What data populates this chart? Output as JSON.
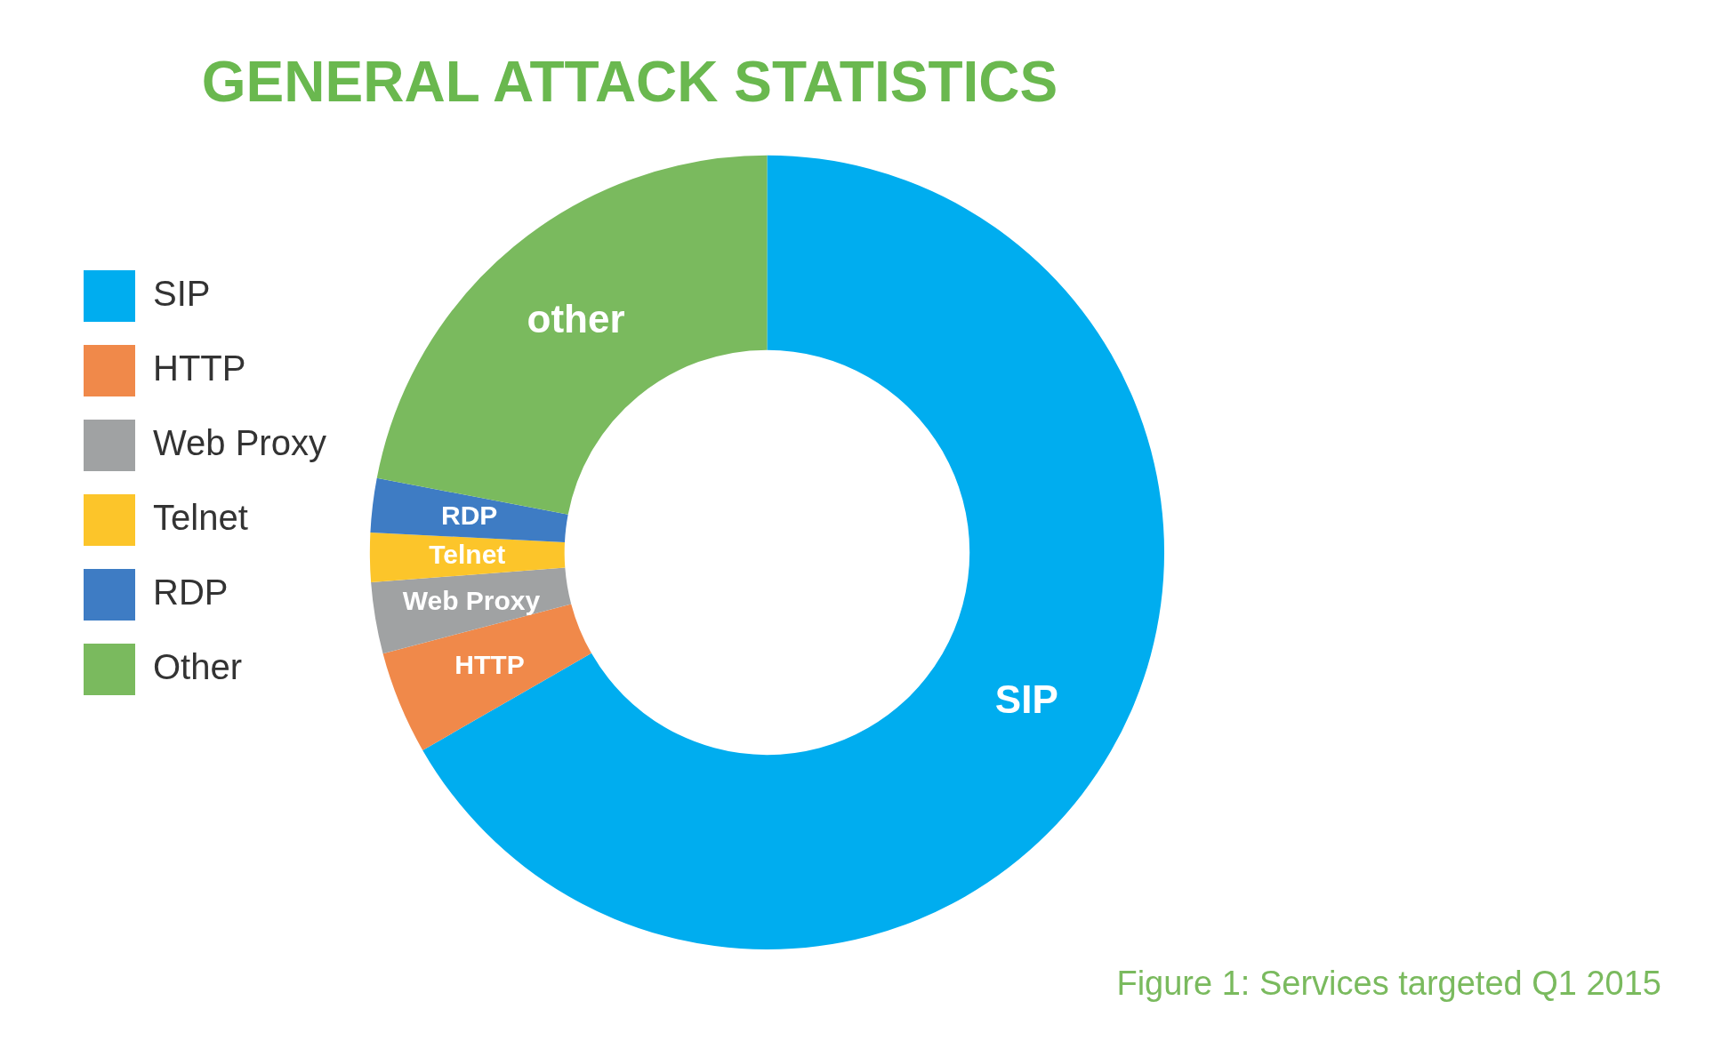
{
  "chart_data": {
    "type": "donut",
    "title": "GENERAL ATTACK STATISTICS",
    "categories": [
      "SIP",
      "HTTP",
      "Web Proxy",
      "Telnet",
      "RDP",
      "Other"
    ],
    "values": [
      66.7,
      4.2,
      2.9,
      2.0,
      2.2,
      22.0
    ],
    "colors": [
      "#00adef",
      "#f0894a",
      "#a0a2a3",
      "#fcc52a",
      "#3e7cc4",
      "#7aba5e"
    ],
    "legend": "left",
    "annotations": [
      {
        "text": "SIP",
        "x": "SIP"
      },
      {
        "text": "HTTP",
        "x": "HTTP"
      },
      {
        "text": "Web Proxy",
        "x": "Web Proxy"
      },
      {
        "text": "Telnet",
        "x": "Telnet"
      },
      {
        "text": "RDP",
        "x": "RDP"
      },
      {
        "text": "other",
        "x": "Other"
      },
      "Figure 1: Services targeted Q1 2015"
    ]
  }
}
